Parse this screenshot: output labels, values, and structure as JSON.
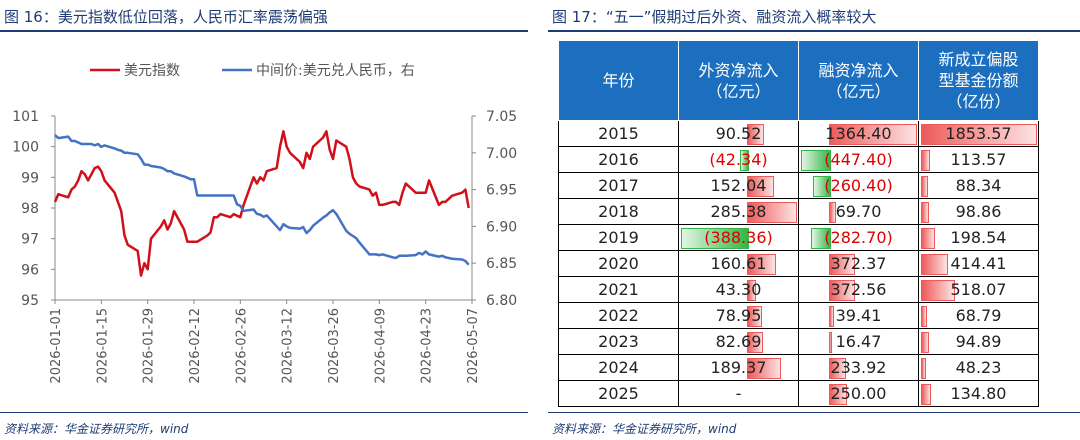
{
  "left": {
    "title": "图 16：美元指数低位回落，人民币汇率震荡偏强",
    "source": "资料来源：华金证券研究所，wind"
  },
  "right": {
    "title": "图 17：“五一”假期过后外资、融资流入概率较大",
    "source": "资料来源：华金证券研究所，wind"
  },
  "colors": {
    "usd": "#d0101b",
    "cny": "#4472c4",
    "pos": "#ee5a5a",
    "neg": "#35b447",
    "header": "#1c6fbf"
  },
  "chart_data": [
    {
      "type": "line",
      "title": "",
      "xlabel": "",
      "ylabel": "",
      "x_ticks": [
        "2026-01-01",
        "2026-01-15",
        "2026-01-29",
        "2026-02-12",
        "2026-02-26",
        "2026-03-12",
        "2026-03-26",
        "2026-04-09",
        "2026-04-23",
        "2026-05-07"
      ],
      "ylim_left": [
        95,
        101
      ],
      "yticks_left": [
        "95",
        "96",
        "97",
        "98",
        "99",
        "100",
        "101"
      ],
      "ylim_right": [
        6.8,
        7.05
      ],
      "yticks_right": [
        "6.80",
        "6.85",
        "6.90",
        "6.95",
        "7.00",
        "7.05"
      ],
      "legend": [
        "美元指数",
        "中间价:美元兑人民币，右"
      ],
      "legend_position": "top",
      "grid": false,
      "series": [
        {
          "name": "美元指数",
          "axis": "left",
          "points": [
            [
              "2026-01-01",
              98.2
            ],
            [
              "2026-01-02",
              98.45
            ],
            [
              "2026-01-05",
              98.35
            ],
            [
              "2026-01-06",
              98.6
            ],
            [
              "2026-01-07",
              98.7
            ],
            [
              "2026-01-08",
              98.9
            ],
            [
              "2026-01-09",
              99.2
            ],
            [
              "2026-01-10",
              99.1
            ],
            [
              "2026-01-11",
              98.9
            ],
            [
              "2026-01-12",
              99.1
            ],
            [
              "2026-01-13",
              99.3
            ],
            [
              "2026-01-14",
              99.35
            ],
            [
              "2026-01-15",
              99.2
            ],
            [
              "2026-01-16",
              98.9
            ],
            [
              "2026-01-19",
              98.5
            ],
            [
              "2026-01-20",
              98.2
            ],
            [
              "2026-01-21",
              97.9
            ],
            [
              "2026-01-22",
              97.1
            ],
            [
              "2026-01-23",
              96.8
            ],
            [
              "2026-01-26",
              96.6
            ],
            [
              "2026-01-27",
              95.8
            ],
            [
              "2026-01-28",
              96.2
            ],
            [
              "2026-01-29",
              96.0
            ],
            [
              "2026-01-30",
              97.0
            ],
            [
              "2026-02-02",
              97.4
            ],
            [
              "2026-02-03",
              97.6
            ],
            [
              "2026-02-04",
              97.3
            ],
            [
              "2026-02-05",
              97.5
            ],
            [
              "2026-02-06",
              97.9
            ],
            [
              "2026-02-09",
              97.3
            ],
            [
              "2026-02-10",
              96.9
            ],
            [
              "2026-02-11",
              96.9
            ],
            [
              "2026-02-12",
              96.9
            ],
            [
              "2026-02-13",
              96.9
            ],
            [
              "2026-02-16",
              97.1
            ],
            [
              "2026-02-17",
              97.2
            ],
            [
              "2026-02-18",
              97.7
            ],
            [
              "2026-02-19",
              97.7
            ],
            [
              "2026-02-20",
              97.8
            ],
            [
              "2026-02-23",
              97.7
            ],
            [
              "2026-02-24",
              97.8
            ],
            [
              "2026-02-25",
              97.75
            ],
            [
              "2026-02-26",
              97.7
            ],
            [
              "2026-02-27",
              98.1
            ],
            [
              "2026-03-02",
              99.0
            ],
            [
              "2026-03-03",
              98.8
            ],
            [
              "2026-03-04",
              99.0
            ],
            [
              "2026-03-05",
              98.9
            ],
            [
              "2026-03-06",
              99.2
            ],
            [
              "2026-03-09",
              99.3
            ],
            [
              "2026-03-10",
              100.0
            ],
            [
              "2026-03-11",
              100.5
            ],
            [
              "2026-03-12",
              100.0
            ],
            [
              "2026-03-13",
              99.8
            ],
            [
              "2026-03-16",
              99.5
            ],
            [
              "2026-03-17",
              99.3
            ],
            [
              "2026-03-18",
              99.8
            ],
            [
              "2026-03-19",
              99.6
            ],
            [
              "2026-03-20",
              100.0
            ],
            [
              "2026-03-23",
              100.3
            ],
            [
              "2026-03-24",
              100.5
            ],
            [
              "2026-03-25",
              99.9
            ],
            [
              "2026-03-26",
              99.6
            ],
            [
              "2026-03-27",
              100.2
            ],
            [
              "2026-03-30",
              100.0
            ],
            [
              "2026-03-31",
              99.6
            ],
            [
              "2026-04-01",
              99.0
            ],
            [
              "2026-04-02",
              98.8
            ],
            [
              "2026-04-03",
              98.7
            ],
            [
              "2026-04-06",
              98.6
            ],
            [
              "2026-04-07",
              98.4
            ],
            [
              "2026-04-08",
              98.5
            ],
            [
              "2026-04-09",
              98.1
            ],
            [
              "2026-04-10",
              98.1
            ],
            [
              "2026-04-13",
              98.2
            ],
            [
              "2026-04-14",
              98.2
            ],
            [
              "2026-04-15",
              98.1
            ],
            [
              "2026-04-16",
              98.5
            ],
            [
              "2026-04-17",
              98.8
            ],
            [
              "2026-04-20",
              98.5
            ],
            [
              "2026-04-21",
              98.5
            ],
            [
              "2026-04-22",
              98.5
            ],
            [
              "2026-04-23",
              98.5
            ],
            [
              "2026-04-24",
              98.9
            ],
            [
              "2026-04-27",
              98.1
            ],
            [
              "2026-04-28",
              98.2
            ],
            [
              "2026-04-29",
              98.2
            ],
            [
              "2026-04-30",
              98.3
            ],
            [
              "2026-05-01",
              98.4
            ],
            [
              "2026-05-04",
              98.5
            ],
            [
              "2026-05-05",
              98.6
            ],
            [
              "2026-05-06",
              98.0
            ]
          ]
        },
        {
          "name": "中间价:美元兑人民币，右",
          "axis": "right",
          "points": [
            [
              "2026-01-01",
              7.024
            ],
            [
              "2026-01-02",
              7.02
            ],
            [
              "2026-01-05",
              7.022
            ],
            [
              "2026-01-06",
              7.016
            ],
            [
              "2026-01-07",
              7.016
            ],
            [
              "2026-01-08",
              7.014
            ],
            [
              "2026-01-09",
              7.012
            ],
            [
              "2026-01-12",
              7.012
            ],
            [
              "2026-01-13",
              7.01
            ],
            [
              "2026-01-14",
              7.012
            ],
            [
              "2026-01-15",
              7.008
            ],
            [
              "2026-01-16",
              7.01
            ],
            [
              "2026-01-19",
              7.006
            ],
            [
              "2026-01-20",
              7.004
            ],
            [
              "2026-01-21",
              7.003
            ],
            [
              "2026-01-22",
              7.0
            ],
            [
              "2026-01-23",
              7.0
            ],
            [
              "2026-01-26",
              6.998
            ],
            [
              "2026-01-27",
              6.992
            ],
            [
              "2026-01-28",
              6.984
            ],
            [
              "2026-01-29",
              6.984
            ],
            [
              "2026-01-30",
              6.982
            ],
            [
              "2026-02-02",
              6.98
            ],
            [
              "2026-02-03",
              6.978
            ],
            [
              "2026-02-04",
              6.975
            ],
            [
              "2026-02-05",
              6.975
            ],
            [
              "2026-02-06",
              6.972
            ],
            [
              "2026-02-09",
              6.968
            ],
            [
              "2026-02-10",
              6.966
            ],
            [
              "2026-02-11",
              6.964
            ],
            [
              "2026-02-12",
              6.964
            ],
            [
              "2026-02-13",
              6.942
            ],
            [
              "2026-02-16",
              6.942
            ],
            [
              "2026-02-17",
              6.942
            ],
            [
              "2026-02-20",
              6.942
            ],
            [
              "2026-02-23",
              6.942
            ],
            [
              "2026-02-24",
              6.942
            ],
            [
              "2026-02-25",
              6.93
            ],
            [
              "2026-02-26",
              6.928
            ],
            [
              "2026-02-27",
              6.921
            ],
            [
              "2026-03-02",
              6.923
            ],
            [
              "2026-03-03",
              6.917
            ],
            [
              "2026-03-04",
              6.916
            ],
            [
              "2026-03-05",
              6.913
            ],
            [
              "2026-03-06",
              6.915
            ],
            [
              "2026-03-09",
              6.9
            ],
            [
              "2026-03-10",
              6.895
            ],
            [
              "2026-03-11",
              6.903
            ],
            [
              "2026-03-12",
              6.9
            ],
            [
              "2026-03-13",
              6.898
            ],
            [
              "2026-03-16",
              6.897
            ],
            [
              "2026-03-17",
              6.899
            ],
            [
              "2026-03-18",
              6.891
            ],
            [
              "2026-03-19",
              6.895
            ],
            [
              "2026-03-20",
              6.901
            ],
            [
              "2026-03-23",
              6.912
            ],
            [
              "2026-03-24",
              6.915
            ],
            [
              "2026-03-25",
              6.919
            ],
            [
              "2026-03-26",
              6.922
            ],
            [
              "2026-03-27",
              6.917
            ],
            [
              "2026-03-30",
              6.894
            ],
            [
              "2026-03-31",
              6.89
            ],
            [
              "2026-04-01",
              6.887
            ],
            [
              "2026-04-02",
              6.884
            ],
            [
              "2026-04-03",
              6.878
            ],
            [
              "2026-04-06",
              6.862
            ],
            [
              "2026-04-07",
              6.862
            ],
            [
              "2026-04-08",
              6.862
            ],
            [
              "2026-04-09",
              6.861
            ],
            [
              "2026-04-10",
              6.862
            ],
            [
              "2026-04-13",
              6.858
            ],
            [
              "2026-04-14",
              6.857
            ],
            [
              "2026-04-15",
              6.86
            ],
            [
              "2026-04-16",
              6.86
            ],
            [
              "2026-04-17",
              6.86
            ],
            [
              "2026-04-20",
              6.861
            ],
            [
              "2026-04-21",
              6.864
            ],
            [
              "2026-04-22",
              6.862
            ],
            [
              "2026-04-23",
              6.866
            ],
            [
              "2026-04-24",
              6.862
            ],
            [
              "2026-04-27",
              6.859
            ],
            [
              "2026-04-28",
              6.86
            ],
            [
              "2026-04-29",
              6.858
            ],
            [
              "2026-04-30",
              6.857
            ],
            [
              "2026-05-01",
              6.856
            ],
            [
              "2026-05-04",
              6.855
            ],
            [
              "2026-05-05",
              6.853
            ],
            [
              "2026-05-06",
              6.848
            ]
          ]
        }
      ]
    },
    {
      "type": "table",
      "columns": [
        "年份",
        "外资净流入（亿元）",
        "融资净流入（亿元）",
        "新成立偏股型基金份额（亿份）"
      ],
      "header_lines": [
        [
          "年份"
        ],
        [
          "外资净流入",
          "（亿元）"
        ],
        [
          "融资净流入",
          "（亿元）"
        ],
        [
          "新成立偏股",
          "型基金份额",
          "（亿份）"
        ]
      ],
      "rows": [
        {
          "year": "2015",
          "fx": 90.52,
          "fx_text": "90.52",
          "mg": 1364.4,
          "mg_text": "1364.40",
          "fd": 1853.57,
          "fd_text": "1853.57"
        },
        {
          "year": "2016",
          "fx": -42.34,
          "fx_text": "(42.34)",
          "mg": -447.4,
          "mg_text": "(447.40)",
          "fd": 113.57,
          "fd_text": "113.57"
        },
        {
          "year": "2017",
          "fx": 152.04,
          "fx_text": "152.04",
          "mg": -260.4,
          "mg_text": "(260.40)",
          "fd": 88.34,
          "fd_text": "88.34"
        },
        {
          "year": "2018",
          "fx": 285.38,
          "fx_text": "285.38",
          "mg": 69.7,
          "mg_text": "69.70",
          "fd": 98.86,
          "fd_text": "98.86"
        },
        {
          "year": "2019",
          "fx": -388.36,
          "fx_text": "(388.36)",
          "mg": -282.7,
          "mg_text": "(282.70)",
          "fd": 198.54,
          "fd_text": "198.54"
        },
        {
          "year": "2020",
          "fx": 160.61,
          "fx_text": "160.61",
          "mg": 372.37,
          "mg_text": "372.37",
          "fd": 414.41,
          "fd_text": "414.41"
        },
        {
          "year": "2021",
          "fx": 43.3,
          "fx_text": "43.30",
          "mg": 372.56,
          "mg_text": "372.56",
          "fd": 518.07,
          "fd_text": "518.07"
        },
        {
          "year": "2022",
          "fx": 78.95,
          "fx_text": "78.95",
          "mg": 39.41,
          "mg_text": "39.41",
          "fd": 68.79,
          "fd_text": "68.79"
        },
        {
          "year": "2023",
          "fx": 82.69,
          "fx_text": "82.69",
          "mg": 16.47,
          "mg_text": "16.47",
          "fd": 94.89,
          "fd_text": "94.89"
        },
        {
          "year": "2024",
          "fx": 189.37,
          "fx_text": "189.37",
          "mg": 233.92,
          "mg_text": "233.92",
          "fd": 48.23,
          "fd_text": "48.23"
        },
        {
          "year": "2025",
          "fx": null,
          "fx_text": "-",
          "mg": 250.0,
          "mg_text": "250.00",
          "fd": 134.8,
          "fd_text": "134.80"
        }
      ]
    }
  ]
}
